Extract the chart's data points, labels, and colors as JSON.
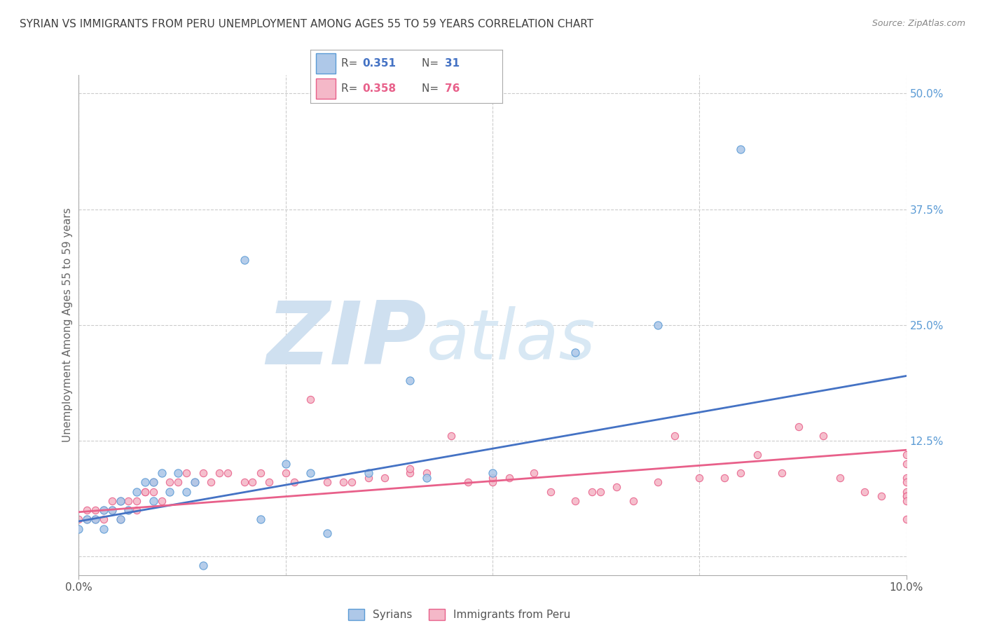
{
  "title": "SYRIAN VS IMMIGRANTS FROM PERU UNEMPLOYMENT AMONG AGES 55 TO 59 YEARS CORRELATION CHART",
  "source": "Source: ZipAtlas.com",
  "ylabel": "Unemployment Among Ages 55 to 59 years",
  "xlim": [
    0.0,
    0.1
  ],
  "ylim": [
    -0.02,
    0.52
  ],
  "yticks": [
    0.0,
    0.125,
    0.25,
    0.375,
    0.5
  ],
  "xticks": [
    0.0,
    0.025,
    0.05,
    0.075,
    0.1
  ],
  "watermark_zip": "ZIP",
  "watermark_atlas": "atlas",
  "blue_fill": "#aec8e8",
  "blue_edge": "#5b9bd5",
  "pink_fill": "#f4b8c8",
  "pink_edge": "#e8608a",
  "blue_line_color": "#4472c4",
  "pink_line_color": "#e8608a",
  "legend_R_blue": "0.351",
  "legend_N_blue": "31",
  "legend_R_pink": "0.358",
  "legend_N_pink": "76",
  "syrians_label": "Syrians",
  "peru_label": "Immigrants from Peru",
  "syrians_x": [
    0.0,
    0.001,
    0.002,
    0.003,
    0.003,
    0.004,
    0.005,
    0.005,
    0.006,
    0.007,
    0.008,
    0.009,
    0.009,
    0.01,
    0.011,
    0.012,
    0.013,
    0.014,
    0.015,
    0.02,
    0.022,
    0.025,
    0.028,
    0.03,
    0.035,
    0.04,
    0.042,
    0.05,
    0.06,
    0.07,
    0.08
  ],
  "syrians_y": [
    0.03,
    0.04,
    0.04,
    0.05,
    0.03,
    0.05,
    0.04,
    0.06,
    0.05,
    0.07,
    0.08,
    0.06,
    0.08,
    0.09,
    0.07,
    0.09,
    0.07,
    0.08,
    -0.01,
    0.32,
    0.04,
    0.1,
    0.09,
    0.025,
    0.09,
    0.19,
    0.085,
    0.09,
    0.22,
    0.25,
    0.44
  ],
  "peru_x": [
    0.0,
    0.001,
    0.001,
    0.002,
    0.002,
    0.003,
    0.003,
    0.004,
    0.004,
    0.005,
    0.005,
    0.006,
    0.006,
    0.007,
    0.007,
    0.008,
    0.008,
    0.009,
    0.009,
    0.01,
    0.011,
    0.012,
    0.013,
    0.014,
    0.015,
    0.016,
    0.017,
    0.018,
    0.02,
    0.021,
    0.022,
    0.023,
    0.025,
    0.026,
    0.028,
    0.03,
    0.032,
    0.033,
    0.035,
    0.037,
    0.04,
    0.04,
    0.042,
    0.045,
    0.047,
    0.05,
    0.05,
    0.052,
    0.055,
    0.057,
    0.06,
    0.062,
    0.063,
    0.065,
    0.067,
    0.07,
    0.072,
    0.075,
    0.078,
    0.08,
    0.082,
    0.085,
    0.087,
    0.09,
    0.092,
    0.095,
    0.097,
    0.1,
    0.1,
    0.1,
    0.1,
    0.1,
    0.1,
    0.1,
    0.1,
    0.1
  ],
  "peru_y": [
    0.04,
    0.04,
    0.05,
    0.04,
    0.05,
    0.04,
    0.05,
    0.05,
    0.06,
    0.04,
    0.06,
    0.05,
    0.06,
    0.05,
    0.06,
    0.07,
    0.07,
    0.07,
    0.08,
    0.06,
    0.08,
    0.08,
    0.09,
    0.08,
    0.09,
    0.08,
    0.09,
    0.09,
    0.08,
    0.08,
    0.09,
    0.08,
    0.09,
    0.08,
    0.17,
    0.08,
    0.08,
    0.08,
    0.085,
    0.085,
    0.09,
    0.095,
    0.09,
    0.13,
    0.08,
    0.08,
    0.085,
    0.085,
    0.09,
    0.07,
    0.06,
    0.07,
    0.07,
    0.075,
    0.06,
    0.08,
    0.13,
    0.085,
    0.085,
    0.09,
    0.11,
    0.09,
    0.14,
    0.13,
    0.085,
    0.07,
    0.065,
    0.04,
    0.07,
    0.085,
    0.08,
    0.11,
    0.065,
    0.065,
    0.06,
    0.1
  ],
  "blue_line_x": [
    0.0,
    0.1
  ],
  "blue_line_y": [
    0.038,
    0.195
  ],
  "pink_line_x": [
    0.0,
    0.1
  ],
  "pink_line_y": [
    0.048,
    0.115
  ],
  "background_color": "#ffffff",
  "grid_color": "#cccccc",
  "title_color": "#404040",
  "right_tick_color": "#5b9bd5",
  "watermark_zip_color": "#cfe0f0",
  "watermark_atlas_color": "#d8e8f4"
}
